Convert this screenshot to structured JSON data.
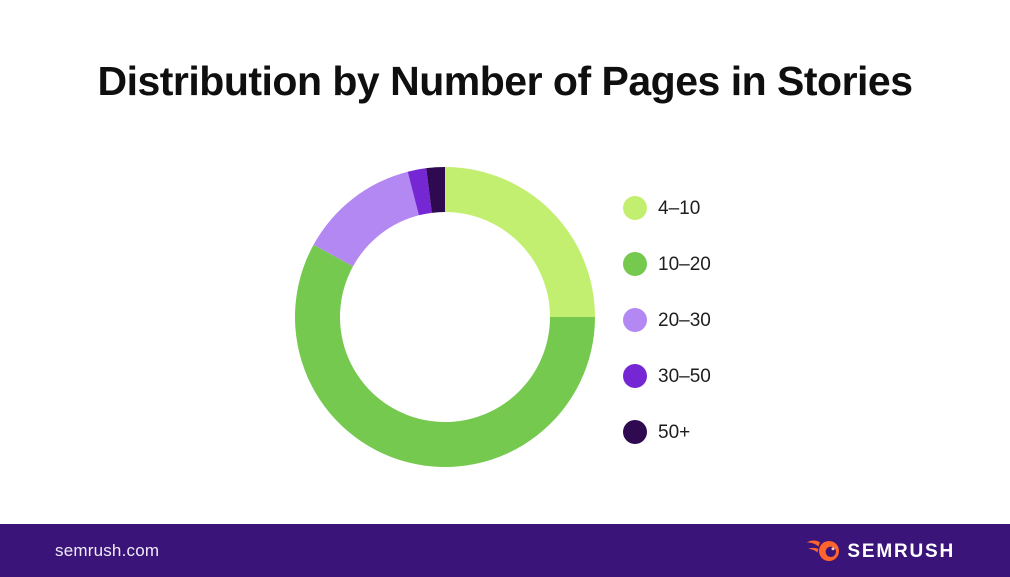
{
  "page": {
    "title": "Distribution by Number of Pages in Stories",
    "background": "#ffffff"
  },
  "chart_data": {
    "type": "pie",
    "subtype": "donut",
    "title": "Distribution by Number of Pages in Stories",
    "categories": [
      "4–10",
      "10–20",
      "20–30",
      "30–50",
      "50+"
    ],
    "values": [
      25,
      58,
      13,
      2,
      2
    ],
    "unit": "percent-of-stories",
    "colors": [
      "#c3ef70",
      "#74c94e",
      "#b388f3",
      "#7627d4",
      "#2f0a50"
    ],
    "start_angle_deg": 0,
    "direction": "clockwise",
    "inner_radius_ratio": 0.7,
    "legend_position": "right",
    "data_labels_shown": false
  },
  "footer": {
    "site_label": "semrush.com",
    "brand_name": "SEMRUSH",
    "background": "#3a1478",
    "brand_orange": "#ff642d"
  }
}
